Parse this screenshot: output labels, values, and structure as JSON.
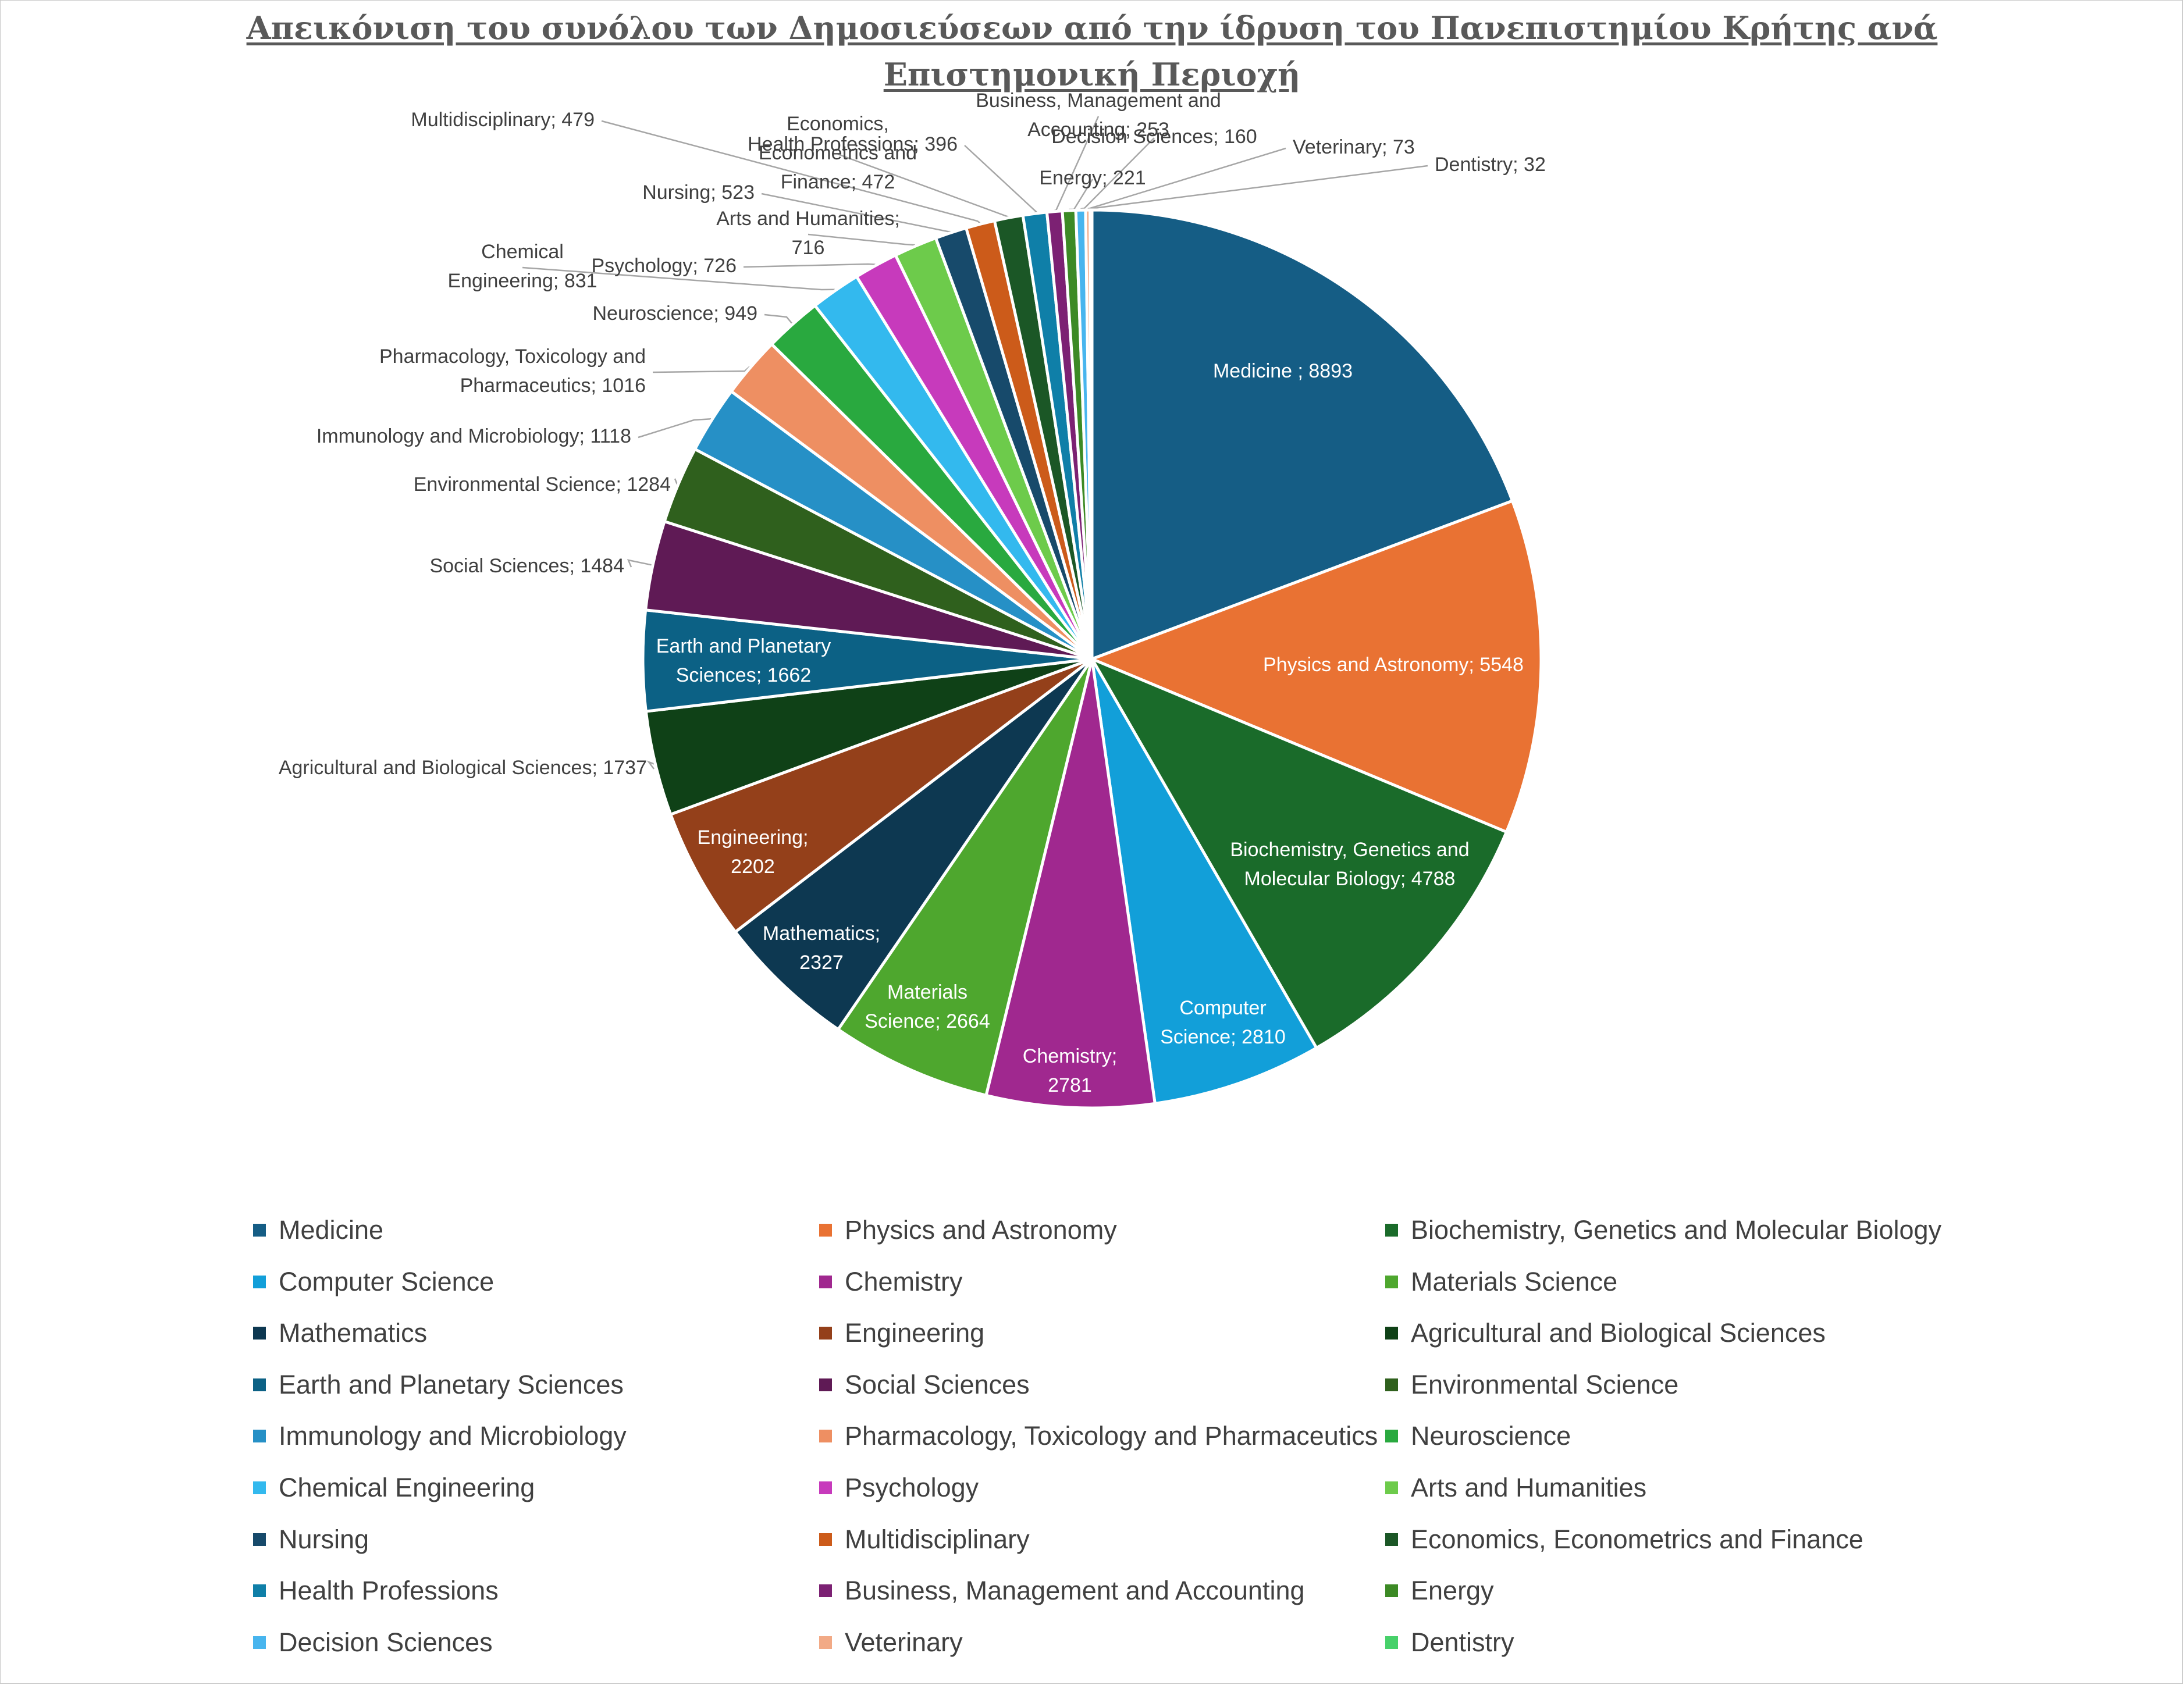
{
  "title_lines": [
    "Απεικόνιση του συνόλου των Δημοσιεύσεων από την ίδρυση του Πανεπιστημίου Κρήτης ανά",
    "Επιστημονική Περιοχή"
  ],
  "chart_data": {
    "type": "pie",
    "title": "Απεικόνιση του συνόλου των Δημοσιεύσεων από την ίδρυση του Πανεπιστημίου Κρήτης ανά Επιστημονική Περιοχή",
    "legend_position": "bottom",
    "start_angle": "12 o'clock, clockwise",
    "slices": [
      {
        "name": "Medicine",
        "label": "Medicine ; 8893",
        "value": 8893,
        "color": "#155D85"
      },
      {
        "name": "Physics and Astronomy",
        "label": "Physics and Astronomy; 5548",
        "value": 5548,
        "color": "#E97233"
      },
      {
        "name": "Biochemistry, Genetics and Molecular Biology",
        "label": "Biochemistry, Genetics and Molecular Biology; 4788",
        "value": 4788,
        "color": "#1A6B2A"
      },
      {
        "name": "Computer Science",
        "label": "Computer Science; 2810",
        "value": 2810,
        "color": "#129FD9"
      },
      {
        "name": "Chemistry",
        "label": "Chemistry; 2781",
        "value": 2781,
        "color": "#A0288F"
      },
      {
        "name": "Materials Science",
        "label": "Materials Science; 2664",
        "value": 2664,
        "color": "#4EA72E"
      },
      {
        "name": "Mathematics",
        "label": "Mathematics; 2327",
        "value": 2327,
        "color": "#0D3851"
      },
      {
        "name": "Engineering",
        "label": "Engineering; 2202",
        "value": 2202,
        "color": "#94401A"
      },
      {
        "name": "Agricultural and Biological Sciences",
        "label": "Agricultural and Biological Sciences; 1737",
        "value": 1737,
        "color": "#0F4117"
      },
      {
        "name": "Earth and Planetary Sciences",
        "label": "Earth and Planetary Sciences; 1662",
        "value": 1662,
        "color": "#0C6185"
      },
      {
        "name": "Social Sciences",
        "label": "Social Sciences; 1484",
        "value": 1484,
        "color": "#5F1A55"
      },
      {
        "name": "Environmental Science",
        "label": "Environmental Science; 1284",
        "value": 1284,
        "color": "#2F601D"
      },
      {
        "name": "Immunology and Microbiology",
        "label": "Immunology and Microbiology; 1118",
        "value": 1118,
        "color": "#2690C6"
      },
      {
        "name": "Pharmacology, Toxicology and Pharmaceutics",
        "label": "Pharmacology, Toxicology and Pharmaceutics; 1016",
        "value": 1016,
        "color": "#EE8F62"
      },
      {
        "name": "Neuroscience",
        "label": "Neuroscience; 949",
        "value": 949,
        "color": "#29A93F"
      },
      {
        "name": "Chemical Engineering",
        "label": "Chemical Engineering; 831",
        "value": 831,
        "color": "#33B9EE"
      },
      {
        "name": "Psychology",
        "label": "Psychology; 726",
        "value": 726,
        "color": "#C73ABC"
      },
      {
        "name": "Arts and Humanities",
        "label": "Arts and Humanities; 716",
        "value": 716,
        "color": "#6DCB4B"
      },
      {
        "name": "Nursing",
        "label": "Nursing; 523",
        "value": 523,
        "color": "#174A6B"
      },
      {
        "name": "Multidisciplinary",
        "label": "Multidisciplinary; 479",
        "value": 479,
        "color": "#CC5B1A"
      },
      {
        "name": "Economics, Econometrics and Finance",
        "label": "Economics, Econometrics and Finance; 472",
        "value": 472,
        "color": "#1B5726"
      },
      {
        "name": "Health Professions",
        "label": "Health Professions; 396",
        "value": 396,
        "color": "#0F7FA8"
      },
      {
        "name": "Business, Management and Accounting",
        "label": "Business, Management and Accounting; 253",
        "value": 253,
        "color": "#7C2173"
      },
      {
        "name": "Energy",
        "label": "Energy; 221",
        "value": 221,
        "color": "#3C8A25"
      },
      {
        "name": "Decision Sciences",
        "label": "Decision Sciences; 160",
        "value": 160,
        "color": "#48B5EE"
      },
      {
        "name": "Veterinary",
        "label": "Veterinary; 73",
        "value": 73,
        "color": "#F2AA86"
      },
      {
        "name": "Dentistry",
        "label": "Dentistry; 32",
        "value": 32,
        "color": "#47D16A"
      }
    ]
  }
}
